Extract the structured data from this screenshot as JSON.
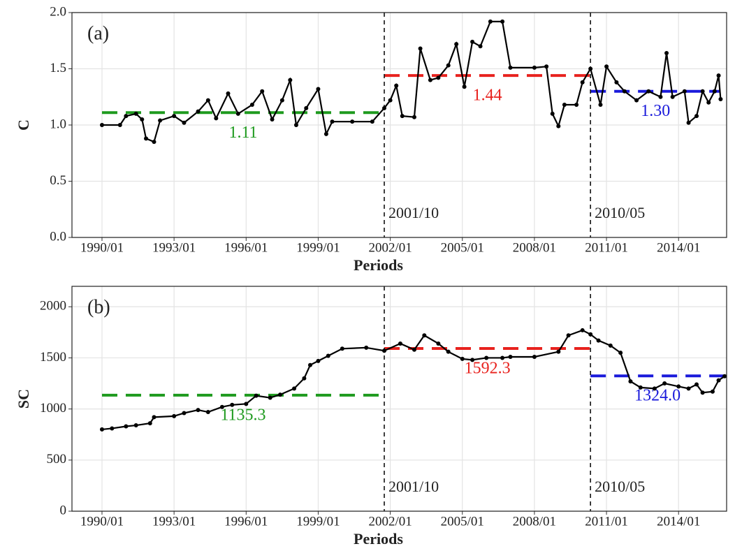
{
  "chart_data": [
    {
      "type": "line",
      "title": "(a)",
      "xlabel": "Periods",
      "ylabel": "C",
      "xlim": [
        "1988/10",
        "2016/01"
      ],
      "ylim": [
        0,
        2
      ],
      "grid": true,
      "xticks": [
        "1990/01",
        "1993/01",
        "1996/01",
        "1999/01",
        "2002/01",
        "2005/01",
        "2008/01",
        "2011/01",
        "2014/01"
      ],
      "yticks": [
        {
          "value": 0,
          "label": "0.0"
        },
        0.5,
        {
          "value": 1,
          "label": "1.0"
        },
        1.5,
        {
          "value": 2,
          "label": "2.0"
        }
      ],
      "breaks": [
        "2001/10",
        "2010/05"
      ],
      "x": [
        "1990/01",
        "1990/10",
        "1991/01",
        "1991/06",
        "1991/09",
        "1991/11",
        "1992/03",
        "1992/06",
        "1993/01",
        "1993/06",
        "1994/01",
        "1994/06",
        "1994/10",
        "1995/04",
        "1995/09",
        "1996/04",
        "1996/09",
        "1997/02",
        "1997/07",
        "1997/11",
        "1998/02",
        "1998/07",
        "1999/01",
        "1999/05",
        "1999/08",
        "2000/06",
        "2001/04",
        "2001/10",
        "2002/01",
        "2002/04",
        "2002/07",
        "2003/01",
        "2003/04",
        "2003/09",
        "2004/01",
        "2004/06",
        "2004/10",
        "2005/02",
        "2005/06",
        "2005/10",
        "2006/03",
        "2006/09",
        "2007/01",
        "2008/01",
        "2008/07",
        "2008/10",
        "2009/01",
        "2009/04",
        "2009/10",
        "2010/01",
        "2010/05",
        "2010/10",
        "2011/01",
        "2011/06",
        "2011/10",
        "2012/04",
        "2012/10",
        "2013/04",
        "2013/07",
        "2013/10",
        "2014/04",
        "2014/06",
        "2014/10",
        "2015/01",
        "2015/04",
        "2015/07",
        "2015/09",
        "2015/10"
      ],
      "series": [
        {
          "color": "#000000",
          "values": [
            1.0,
            1.0,
            1.08,
            1.1,
            1.05,
            0.88,
            0.85,
            1.04,
            1.08,
            1.02,
            1.12,
            1.22,
            1.06,
            1.28,
            1.1,
            1.18,
            1.3,
            1.05,
            1.22,
            1.4,
            1.0,
            1.15,
            1.32,
            0.92,
            1.03,
            1.03,
            1.03,
            1.15,
            1.22,
            1.35,
            1.08,
            1.07,
            1.68,
            1.4,
            1.42,
            1.53,
            1.72,
            1.34,
            1.74,
            1.7,
            1.92,
            1.92,
            1.51,
            1.51,
            1.52,
            1.1,
            0.99,
            1.18,
            1.18,
            1.38,
            1.5,
            1.18,
            1.52,
            1.38,
            1.3,
            1.22,
            1.3,
            1.25,
            1.64,
            1.25,
            1.3,
            1.02,
            1.08,
            1.3,
            1.2,
            1.3,
            1.44,
            1.23
          ]
        }
      ],
      "means": [
        {
          "value": 1.11,
          "label": "1.11",
          "color": "#1e9a1e",
          "start": "1990/01",
          "end": "2001/10"
        },
        {
          "value": 1.44,
          "label": "1.44",
          "color": "#e8221e",
          "start": "2001/10",
          "end": "2010/05"
        },
        {
          "value": 1.3,
          "label": "1.30",
          "color": "#1a1adb",
          "start": "2010/05",
          "end": "2015/10"
        }
      ]
    },
    {
      "type": "line",
      "title": "(b)",
      "xlabel": "Periods",
      "ylabel": "SC",
      "xlim": [
        "1988/10",
        "2016/01"
      ],
      "ylim": [
        0,
        2200
      ],
      "grid": true,
      "xticks": [
        "1990/01",
        "1993/01",
        "1996/01",
        "1999/01",
        "2002/01",
        "2005/01",
        "2008/01",
        "2011/01",
        "2014/01"
      ],
      "yticks": [
        0,
        500,
        1000,
        1500,
        2000
      ],
      "breaks": [
        "2001/10",
        "2010/05"
      ],
      "x": [
        "1990/01",
        "1990/06",
        "1991/01",
        "1991/06",
        "1992/01",
        "1992/03",
        "1993/01",
        "1993/06",
        "1994/01",
        "1994/06",
        "1995/01",
        "1995/06",
        "1996/01",
        "1996/06",
        "1997/01",
        "1997/06",
        "1998/01",
        "1998/06",
        "1998/09",
        "1999/01",
        "1999/06",
        "2000/01",
        "2001/01",
        "2001/10",
        "2002/06",
        "2003/01",
        "2003/06",
        "2004/01",
        "2004/06",
        "2005/01",
        "2005/06",
        "2006/01",
        "2006/09",
        "2007/01",
        "2008/01",
        "2009/01",
        "2009/06",
        "2010/01",
        "2010/05",
        "2010/09",
        "2011/03",
        "2011/08",
        "2012/01",
        "2012/06",
        "2013/01",
        "2013/06",
        "2014/01",
        "2014/06",
        "2014/10",
        "2015/01",
        "2015/06",
        "2015/09",
        "2015/12"
      ],
      "series": [
        {
          "color": "#000000",
          "values": [
            800,
            810,
            830,
            840,
            860,
            920,
            930,
            960,
            990,
            970,
            1020,
            1040,
            1050,
            1130,
            1110,
            1140,
            1200,
            1300,
            1430,
            1470,
            1520,
            1590,
            1600,
            1570,
            1640,
            1580,
            1720,
            1640,
            1560,
            1490,
            1480,
            1500,
            1500,
            1510,
            1510,
            1560,
            1720,
            1770,
            1730,
            1670,
            1620,
            1550,
            1270,
            1210,
            1200,
            1250,
            1220,
            1200,
            1240,
            1160,
            1170,
            1280,
            1320
          ]
        }
      ],
      "means": [
        {
          "value": 1135.3,
          "label": "1135.3",
          "color": "#1e9a1e",
          "start": "1990/01",
          "end": "2001/10"
        },
        {
          "value": 1592.3,
          "label": "1592.3",
          "color": "#e8221e",
          "start": "2001/10",
          "end": "2010/05"
        },
        {
          "value": 1324.0,
          "label": "1324.0",
          "color": "#1a1adb",
          "start": "2010/05",
          "end": "2015/12"
        }
      ]
    }
  ]
}
